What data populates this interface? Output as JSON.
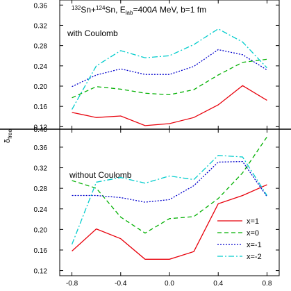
{
  "chart_data": {
    "type": "line",
    "title": "",
    "ylabel": "δ_free",
    "ylabel_main": "δ",
    "ylabel_sub": "free",
    "xlabel": "",
    "annotation": {
      "sup1": "132",
      "p1": "Sn+",
      "sup2": "124",
      "p2": "Sn, E",
      "sub": "lab",
      "p3": "=400",
      "italic": "A",
      "p4": " MeV, b=1 fm"
    },
    "xlim": [
      -0.9,
      0.9
    ],
    "x_ticks": [
      "-0.8",
      "-0.4",
      "0.0",
      "0.4",
      "0.8"
    ],
    "x_tick_values": [
      -0.8,
      -0.4,
      0.0,
      0.4,
      0.8
    ],
    "x": [
      -0.8,
      -0.6,
      -0.4,
      -0.2,
      0.0,
      0.2,
      0.4,
      0.6,
      0.8
    ],
    "legend": {
      "placement": "bottom-right",
      "entries": [
        "x=1",
        "x=0",
        "x=-1",
        "x=-2"
      ]
    },
    "styles": [
      {
        "color": "#e8000b",
        "dash": ""
      },
      {
        "color": "#00b000",
        "dash": "6,4"
      },
      {
        "color": "#0000cc",
        "dash": "2,2"
      },
      {
        "color": "#00cccc",
        "dash": "8,3,2,3"
      }
    ],
    "panels": [
      {
        "label": "with Coulomb",
        "ylim": [
          0.115,
          0.37
        ],
        "y_ticks": [
          "0.12",
          "0.16",
          "0.20",
          "0.24",
          "0.28",
          "0.32",
          "0.36"
        ],
        "y_tick_values": [
          0.12,
          0.16,
          0.2,
          0.24,
          0.28,
          0.32,
          0.36
        ],
        "series": [
          {
            "name": "x=1",
            "values": [
              0.148,
              0.138,
              0.141,
              0.122,
              0.126,
              0.138,
              0.163,
              0.201,
              0.172
            ]
          },
          {
            "name": "x=0",
            "values": [
              0.177,
              0.199,
              0.194,
              0.186,
              0.183,
              0.193,
              0.222,
              0.247,
              0.253
            ]
          },
          {
            "name": "x=-1",
            "values": [
              0.199,
              0.222,
              0.234,
              0.223,
              0.223,
              0.239,
              0.272,
              0.262,
              0.232
            ]
          },
          {
            "name": "x=-2",
            "values": [
              0.154,
              0.24,
              0.27,
              0.256,
              0.26,
              0.282,
              0.313,
              0.287,
              0.236
            ]
          }
        ]
      },
      {
        "label": "without Coulomb",
        "top_tick": "0.40",
        "ylim": [
          0.11,
          0.395
        ],
        "y_ticks": [
          "0.12",
          "0.16",
          "0.20",
          "0.24",
          "0.28",
          "0.32",
          "0.36"
        ],
        "y_tick_values": [
          0.12,
          0.16,
          0.2,
          0.24,
          0.28,
          0.32,
          0.36
        ],
        "series": [
          {
            "name": "x=1",
            "values": [
              0.158,
              0.201,
              0.182,
              0.142,
              0.142,
              0.157,
              0.25,
              0.266,
              0.287
            ]
          },
          {
            "name": "x=0",
            "values": [
              0.295,
              0.28,
              0.224,
              0.193,
              0.221,
              0.225,
              0.26,
              0.31,
              0.38
            ]
          },
          {
            "name": "x=-1",
            "values": [
              0.266,
              0.266,
              0.262,
              0.253,
              0.258,
              0.285,
              0.331,
              0.332,
              0.264
            ]
          },
          {
            "name": "x=-2",
            "values": [
              0.171,
              0.292,
              0.301,
              0.29,
              0.304,
              0.297,
              0.344,
              0.341,
              0.266
            ]
          }
        ]
      }
    ]
  }
}
